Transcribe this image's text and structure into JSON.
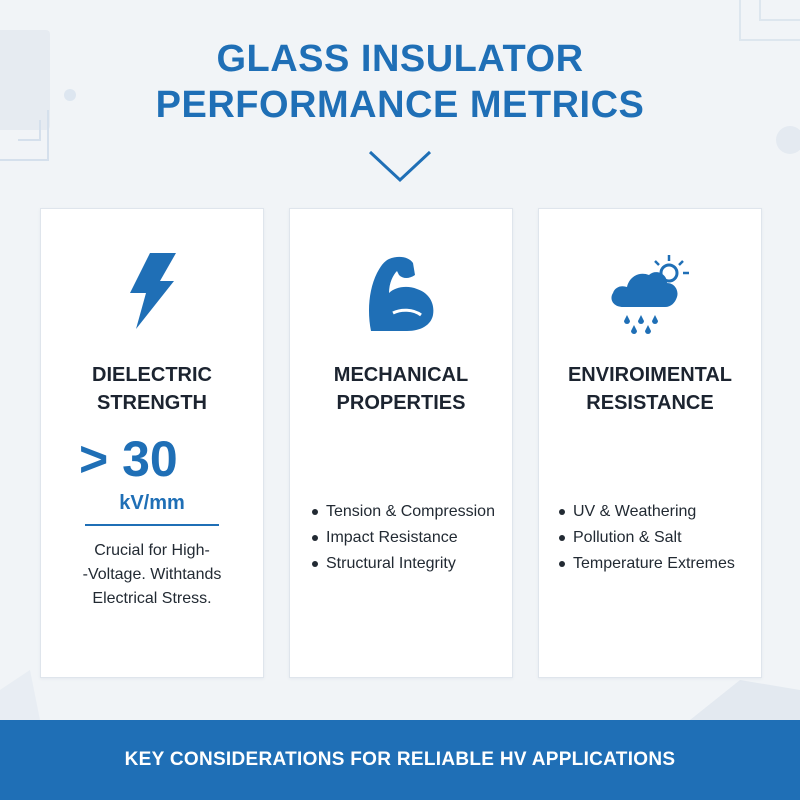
{
  "header": {
    "title_line1": "GLASS INSULATOR",
    "title_line2": "PERFORMANCE METRICS"
  },
  "colors": {
    "accent": "#1f6fb6",
    "background": "#f1f4f7",
    "card": "#ffffff",
    "text": "#1c2430"
  },
  "cards": [
    {
      "icon": "lightning-bolt-icon",
      "title_line1": "DIELECTRIC",
      "title_line2": "STRENGTH",
      "value": "> 30",
      "unit": "kV/mm",
      "desc_line1": "Crucial for High-",
      "desc_line2": "-Voltage. Withtands",
      "desc_line3": "Electrical Stress."
    },
    {
      "icon": "flexed-arm-icon",
      "title_line1": "MECHANICAL",
      "title_line2": "PROPERTIES",
      "bullets": [
        "Tension & Compression",
        "Impact Resistance",
        "Structural Integrity"
      ]
    },
    {
      "icon": "rain-cloud-sun-icon",
      "title_line1": "ENVIROIMENTAL",
      "title_line2": "RESISTANCE",
      "bullets": [
        "UV & Weathering",
        "Pollution & Salt",
        "Temperature Extremes"
      ]
    }
  ],
  "footer": {
    "text": "KEY CONSIDERATIONS FOR RELIABLE HV APPLICATIONS"
  }
}
